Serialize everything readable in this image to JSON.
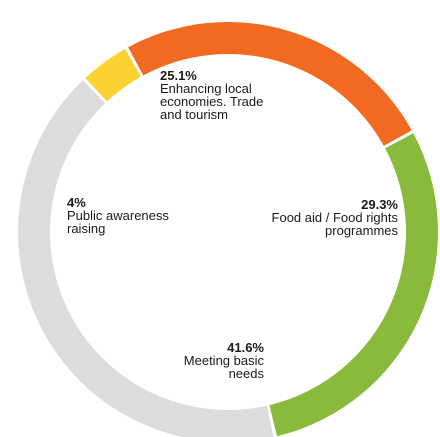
{
  "chart_data": {
    "type": "pie",
    "donut": true,
    "title": "",
    "legend": "none",
    "slices": [
      {
        "value": 29.3,
        "percent_label": "29.3%",
        "label_lines": [
          "Food aid / Food rights",
          "programmes"
        ],
        "color": "#8aba3c"
      },
      {
        "value": 41.6,
        "percent_label": "41.6%",
        "label_lines": [
          "Meeting basic",
          "needs"
        ],
        "color": "#dcdcdc"
      },
      {
        "value": 4,
        "percent_label": "4%",
        "label_lines": [
          "Public awareness",
          "raising"
        ],
        "color": "#fcd232"
      },
      {
        "value": 25.1,
        "percent_label": "25.1%",
        "label_lines": [
          "Enhancing local",
          "economies. Trade",
          "and tourism"
        ],
        "color": "#f26a21"
      }
    ]
  }
}
